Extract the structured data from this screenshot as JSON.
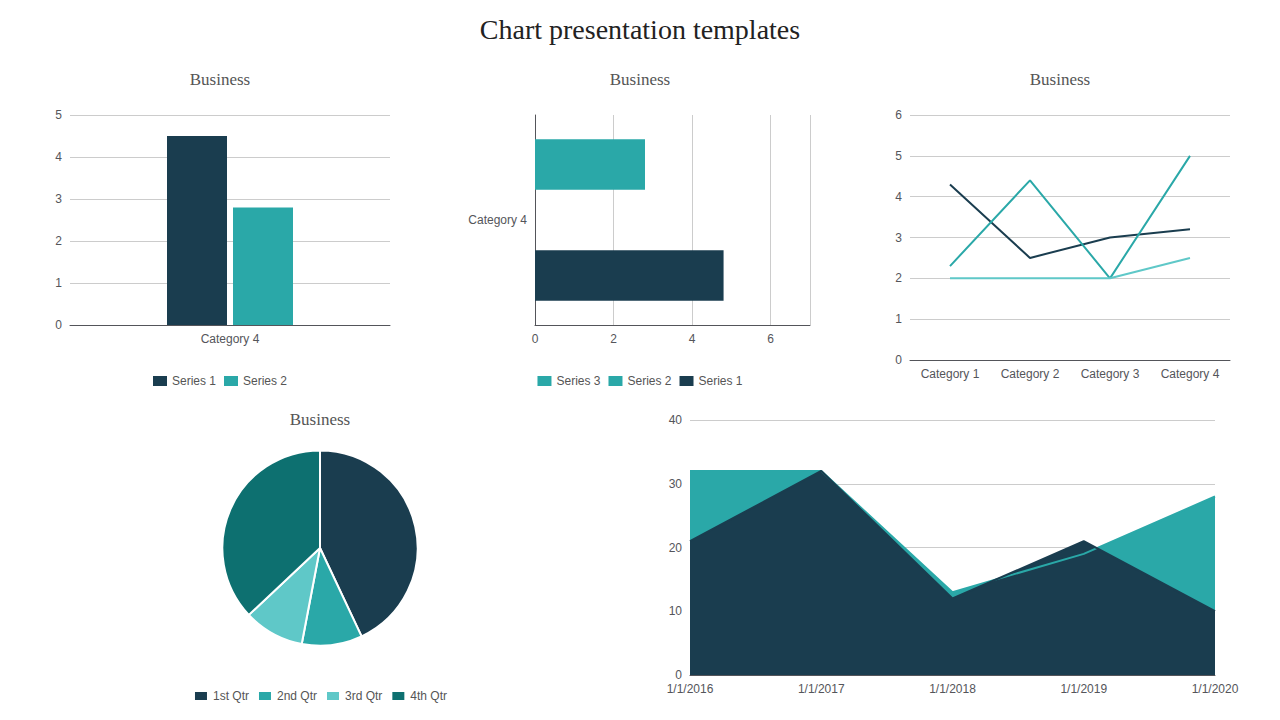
{
  "title": "Chart presentation templates",
  "chart_data": [
    {
      "type": "bar",
      "title": "Business",
      "categories": [
        "Category 4"
      ],
      "series": [
        {
          "name": "Series 1",
          "color": "#1a3d4f",
          "values": [
            4.5
          ]
        },
        {
          "name": "Series 2",
          "color": "#2aa8a8",
          "values": [
            2.8
          ]
        }
      ],
      "ylim": [
        0,
        5
      ],
      "yticks": [
        0,
        1,
        2,
        3,
        4,
        5
      ],
      "grid": true,
      "legend": "bottom"
    },
    {
      "type": "bar",
      "orientation": "horizontal",
      "title": "Business",
      "categories": [
        "Category 4"
      ],
      "series": [
        {
          "name": "Series 3",
          "color": "#2aa8a8",
          "values": [
            2.8
          ]
        },
        {
          "name": "Series 2",
          "color": "#2aa8a8",
          "values": [
            null
          ]
        },
        {
          "name": "Series 1",
          "color": "#1a3d4f",
          "values": [
            4.8
          ]
        }
      ],
      "xlim": [
        0,
        7
      ],
      "xticks": [
        0,
        2,
        4,
        6
      ],
      "grid": true,
      "legend": "bottom"
    },
    {
      "type": "line",
      "title": "Business",
      "categories": [
        "Category 1",
        "Category 2",
        "Category 3",
        "Category 4"
      ],
      "series": [
        {
          "color": "#1a3d4f",
          "values": [
            4.3,
            2.5,
            3.0,
            3.2
          ]
        },
        {
          "color": "#2aa8a8",
          "values": [
            2.3,
            4.4,
            2.0,
            5.0
          ]
        },
        {
          "color": "#5fc8c8",
          "values": [
            2.0,
            2.0,
            2.0,
            2.5
          ]
        }
      ],
      "ylim": [
        0,
        6
      ],
      "yticks": [
        0,
        1,
        2,
        3,
        4,
        5,
        6
      ],
      "grid": true
    },
    {
      "type": "pie",
      "title": "Business",
      "categories": [
        "1st Qtr",
        "2nd Qtr",
        "3rd Qtr",
        "4th Qtr"
      ],
      "values": [
        43,
        10,
        10,
        37
      ],
      "colors": [
        "#1a3d4f",
        "#2aa8a8",
        "#5fc8c8",
        "#0d7070"
      ],
      "legend": "bottom"
    },
    {
      "type": "area",
      "categories": [
        "1/1/2016",
        "1/1/2017",
        "1/1/2018",
        "1/1/2019",
        "1/1/2020"
      ],
      "series": [
        {
          "color": "#2aa8a8",
          "values": [
            32,
            32,
            13,
            19,
            28
          ]
        },
        {
          "color": "#1a3d4f",
          "values": [
            21,
            32,
            12,
            21,
            10
          ]
        }
      ],
      "ylim": [
        0,
        40
      ],
      "yticks": [
        0,
        10,
        20,
        30,
        40
      ],
      "grid": true
    }
  ]
}
